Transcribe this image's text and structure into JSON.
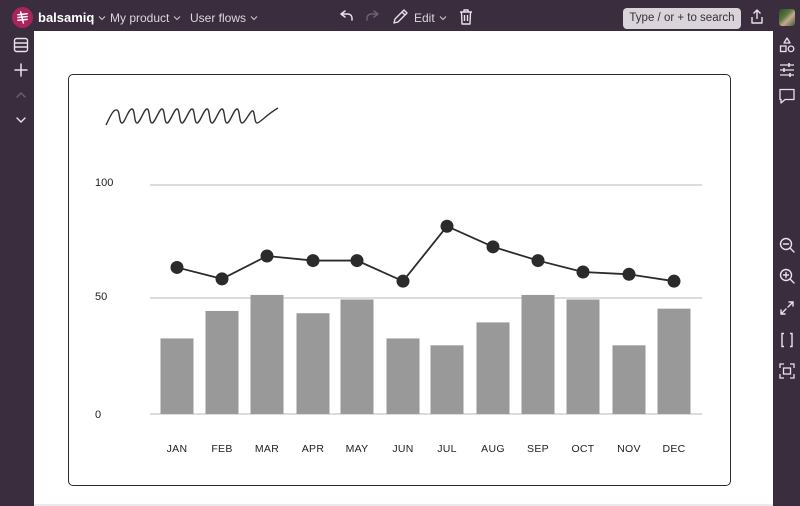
{
  "topbar": {
    "brand": "balsamiq",
    "project": "My product",
    "page": "User flows",
    "edit_label": "Edit",
    "search_placeholder": "Type / or + to search",
    "icons": {
      "logo": "balsamiq-logo-icon",
      "undo": "undo-icon",
      "redo": "redo-icon",
      "edit": "pencil-icon",
      "delete": "trash-icon",
      "share": "share-icon",
      "avatar": "user-avatar"
    },
    "colors": {
      "background": "#3a2d3d",
      "logo": "#a8245a",
      "search_bg": "#d9d4da"
    }
  },
  "leftbar": {
    "items": [
      {
        "name": "list-icon"
      },
      {
        "name": "add-icon"
      },
      {
        "name": "chevron-up-icon",
        "disabled": true
      },
      {
        "name": "chevron-down-icon"
      }
    ]
  },
  "rightbar": {
    "top_items": [
      {
        "name": "shapes-icon"
      },
      {
        "name": "properties-icon"
      },
      {
        "name": "comment-icon"
      }
    ],
    "bottom_items": [
      {
        "name": "zoom-out-icon"
      },
      {
        "name": "zoom-in-icon"
      },
      {
        "name": "expand-icon"
      },
      {
        "name": "brackets-icon"
      },
      {
        "name": "fit-screen-icon"
      }
    ]
  },
  "chart_data": {
    "type": "bar",
    "title": "",
    "title_placeholder": "squiggle (wireframe title)",
    "categories": [
      "JAN",
      "FEB",
      "MAR",
      "APR",
      "MAY",
      "JUN",
      "JUL",
      "AUG",
      "SEP",
      "OCT",
      "NOV",
      "DEC"
    ],
    "series": [
      {
        "name": "bars",
        "type": "bar",
        "color": "#999999",
        "values": [
          33,
          45,
          52,
          44,
          50,
          33,
          30,
          40,
          52,
          50,
          30,
          46
        ]
      },
      {
        "name": "line",
        "type": "line",
        "color": "#2b2b2b",
        "values": [
          64,
          59,
          69,
          67,
          67,
          58,
          82,
          73,
          67,
          62,
          61,
          58
        ]
      }
    ],
    "yticks": [
      "0",
      "50",
      "100"
    ],
    "ylim": [
      0,
      100
    ],
    "grid": true,
    "xlabel": "",
    "ylabel": ""
  }
}
